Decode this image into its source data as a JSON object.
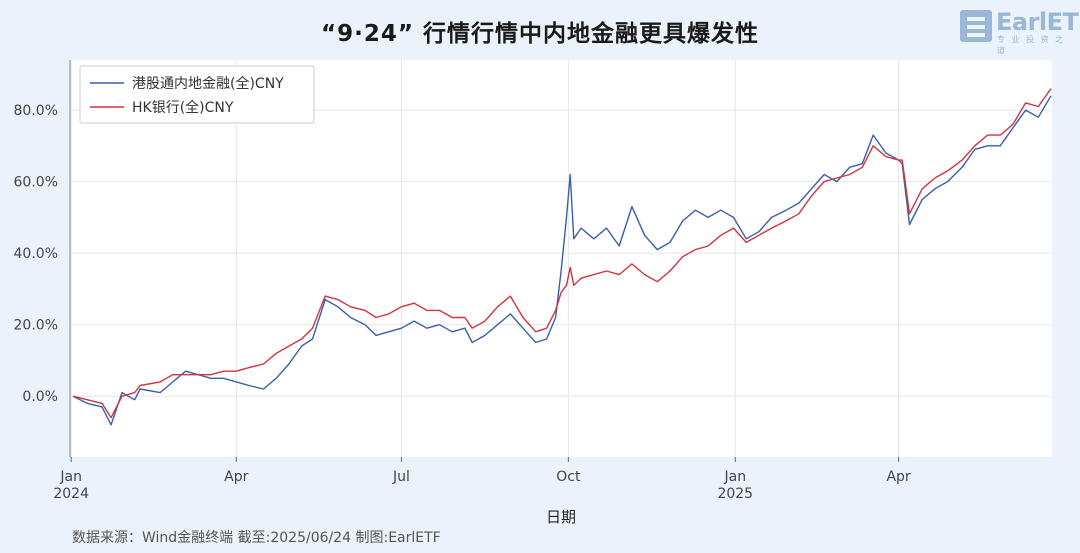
{
  "title": "“9·24” 行情行情中内地金融更具爆发性",
  "logo": {
    "name": "EarlETF",
    "sub": "专 业 投 资 之 道"
  },
  "source": "数据来源：Wind金融终端 截至:2025/06/24 制图:EarlETF",
  "colors": {
    "series1": "#3a5fa8",
    "series2": "#d0343f",
    "background": "#eaf2fb",
    "plot_bg": "#ffffff",
    "grid": "#e6e6e6"
  },
  "chart_data": {
    "type": "line",
    "title": "“9·24” 行情行情中内地金融更具爆发性",
    "xlabel": "日期",
    "ylabel": "",
    "x_range": [
      "2024-01-02",
      "2025-06-24"
    ],
    "ylim": [
      -0.17,
      0.94
    ],
    "y_ticks": [
      0,
      0.2,
      0.4,
      0.6,
      0.8
    ],
    "y_tick_labels": [
      "0.0%",
      "20.0%",
      "40.0%",
      "60.0%",
      "80.0%"
    ],
    "x_ticks": [
      {
        "date": "2024-01-01",
        "label": "Jan",
        "label2": "2024"
      },
      {
        "date": "2024-04-01",
        "label": "Apr",
        "label2": ""
      },
      {
        "date": "2024-07-01",
        "label": "Jul",
        "label2": ""
      },
      {
        "date": "2024-10-01",
        "label": "Oct",
        "label2": ""
      },
      {
        "date": "2025-01-01",
        "label": "Jan",
        "label2": "2025"
      },
      {
        "date": "2025-04-01",
        "label": "Apr",
        "label2": ""
      }
    ],
    "grid": true,
    "legend": "top-left",
    "series": [
      {
        "name": "港股通内地金融(全)CNY",
        "color": "#3a5fa8",
        "points": [
          [
            "2024-01-02",
            0.0
          ],
          [
            "2024-01-10",
            -0.02
          ],
          [
            "2024-01-18",
            -0.03
          ],
          [
            "2024-01-23",
            -0.08
          ],
          [
            "2024-01-29",
            0.01
          ],
          [
            "2024-02-05",
            -0.01
          ],
          [
            "2024-02-08",
            0.02
          ],
          [
            "2024-02-19",
            0.01
          ],
          [
            "2024-02-26",
            0.04
          ],
          [
            "2024-03-04",
            0.07
          ],
          [
            "2024-03-11",
            0.06
          ],
          [
            "2024-03-18",
            0.05
          ],
          [
            "2024-03-25",
            0.05
          ],
          [
            "2024-04-01",
            0.04
          ],
          [
            "2024-04-08",
            0.03
          ],
          [
            "2024-04-16",
            0.02
          ],
          [
            "2024-04-23",
            0.05
          ],
          [
            "2024-04-30",
            0.09
          ],
          [
            "2024-05-07",
            0.14
          ],
          [
            "2024-05-13",
            0.16
          ],
          [
            "2024-05-20",
            0.27
          ],
          [
            "2024-05-27",
            0.25
          ],
          [
            "2024-06-03",
            0.22
          ],
          [
            "2024-06-11",
            0.2
          ],
          [
            "2024-06-17",
            0.17
          ],
          [
            "2024-06-24",
            0.18
          ],
          [
            "2024-07-01",
            0.19
          ],
          [
            "2024-07-08",
            0.21
          ],
          [
            "2024-07-15",
            0.19
          ],
          [
            "2024-07-22",
            0.2
          ],
          [
            "2024-07-29",
            0.18
          ],
          [
            "2024-08-05",
            0.19
          ],
          [
            "2024-08-09",
            0.15
          ],
          [
            "2024-08-16",
            0.17
          ],
          [
            "2024-08-23",
            0.2
          ],
          [
            "2024-08-30",
            0.23
          ],
          [
            "2024-09-06",
            0.19
          ],
          [
            "2024-09-13",
            0.15
          ],
          [
            "2024-09-19",
            0.16
          ],
          [
            "2024-09-24",
            0.22
          ],
          [
            "2024-09-27",
            0.35
          ],
          [
            "2024-09-30",
            0.5
          ],
          [
            "2024-10-02",
            0.62
          ],
          [
            "2024-10-04",
            0.44
          ],
          [
            "2024-10-08",
            0.47
          ],
          [
            "2024-10-15",
            0.44
          ],
          [
            "2024-10-22",
            0.47
          ],
          [
            "2024-10-29",
            0.42
          ],
          [
            "2024-11-05",
            0.53
          ],
          [
            "2024-11-12",
            0.45
          ],
          [
            "2024-11-19",
            0.41
          ],
          [
            "2024-11-26",
            0.43
          ],
          [
            "2024-12-03",
            0.49
          ],
          [
            "2024-12-10",
            0.52
          ],
          [
            "2024-12-17",
            0.5
          ],
          [
            "2024-12-24",
            0.52
          ],
          [
            "2024-12-31",
            0.5
          ],
          [
            "2025-01-07",
            0.44
          ],
          [
            "2025-01-14",
            0.46
          ],
          [
            "2025-01-21",
            0.5
          ],
          [
            "2025-01-29",
            0.52
          ],
          [
            "2025-02-05",
            0.54
          ],
          [
            "2025-02-12",
            0.58
          ],
          [
            "2025-02-19",
            0.62
          ],
          [
            "2025-02-26",
            0.6
          ],
          [
            "2025-03-05",
            0.64
          ],
          [
            "2025-03-12",
            0.65
          ],
          [
            "2025-03-18",
            0.73
          ],
          [
            "2025-03-25",
            0.68
          ],
          [
            "2025-04-01",
            0.66
          ],
          [
            "2025-04-03",
            0.65
          ],
          [
            "2025-04-07",
            0.48
          ],
          [
            "2025-04-14",
            0.55
          ],
          [
            "2025-04-21",
            0.58
          ],
          [
            "2025-04-28",
            0.6
          ],
          [
            "2025-05-06",
            0.64
          ],
          [
            "2025-05-13",
            0.69
          ],
          [
            "2025-05-20",
            0.7
          ],
          [
            "2025-05-27",
            0.7
          ],
          [
            "2025-06-03",
            0.75
          ],
          [
            "2025-06-10",
            0.8
          ],
          [
            "2025-06-17",
            0.78
          ],
          [
            "2025-06-24",
            0.84
          ]
        ]
      },
      {
        "name": "HK银行(全)CNY",
        "color": "#d0343f",
        "points": [
          [
            "2024-01-02",
            0.0
          ],
          [
            "2024-01-10",
            -0.01
          ],
          [
            "2024-01-18",
            -0.02
          ],
          [
            "2024-01-23",
            -0.06
          ],
          [
            "2024-01-29",
            0.0
          ],
          [
            "2024-02-05",
            0.01
          ],
          [
            "2024-02-08",
            0.03
          ],
          [
            "2024-02-19",
            0.04
          ],
          [
            "2024-02-26",
            0.06
          ],
          [
            "2024-03-04",
            0.06
          ],
          [
            "2024-03-11",
            0.06
          ],
          [
            "2024-03-18",
            0.06
          ],
          [
            "2024-03-25",
            0.07
          ],
          [
            "2024-04-01",
            0.07
          ],
          [
            "2024-04-08",
            0.08
          ],
          [
            "2024-04-16",
            0.09
          ],
          [
            "2024-04-23",
            0.12
          ],
          [
            "2024-04-30",
            0.14
          ],
          [
            "2024-05-07",
            0.16
          ],
          [
            "2024-05-13",
            0.19
          ],
          [
            "2024-05-20",
            0.28
          ],
          [
            "2024-05-27",
            0.27
          ],
          [
            "2024-06-03",
            0.25
          ],
          [
            "2024-06-11",
            0.24
          ],
          [
            "2024-06-17",
            0.22
          ],
          [
            "2024-06-24",
            0.23
          ],
          [
            "2024-07-01",
            0.25
          ],
          [
            "2024-07-08",
            0.26
          ],
          [
            "2024-07-15",
            0.24
          ],
          [
            "2024-07-22",
            0.24
          ],
          [
            "2024-07-29",
            0.22
          ],
          [
            "2024-08-05",
            0.22
          ],
          [
            "2024-08-09",
            0.19
          ],
          [
            "2024-08-16",
            0.21
          ],
          [
            "2024-08-23",
            0.25
          ],
          [
            "2024-08-30",
            0.28
          ],
          [
            "2024-09-06",
            0.22
          ],
          [
            "2024-09-13",
            0.18
          ],
          [
            "2024-09-19",
            0.19
          ],
          [
            "2024-09-24",
            0.24
          ],
          [
            "2024-09-27",
            0.29
          ],
          [
            "2024-09-30",
            0.31
          ],
          [
            "2024-10-02",
            0.36
          ],
          [
            "2024-10-04",
            0.31
          ],
          [
            "2024-10-08",
            0.33
          ],
          [
            "2024-10-15",
            0.34
          ],
          [
            "2024-10-22",
            0.35
          ],
          [
            "2024-10-29",
            0.34
          ],
          [
            "2024-11-05",
            0.37
          ],
          [
            "2024-11-12",
            0.34
          ],
          [
            "2024-11-19",
            0.32
          ],
          [
            "2024-11-26",
            0.35
          ],
          [
            "2024-12-03",
            0.39
          ],
          [
            "2024-12-10",
            0.41
          ],
          [
            "2024-12-17",
            0.42
          ],
          [
            "2024-12-24",
            0.45
          ],
          [
            "2024-12-31",
            0.47
          ],
          [
            "2025-01-07",
            0.43
          ],
          [
            "2025-01-14",
            0.45
          ],
          [
            "2025-01-21",
            0.47
          ],
          [
            "2025-01-29",
            0.49
          ],
          [
            "2025-02-05",
            0.51
          ],
          [
            "2025-02-12",
            0.56
          ],
          [
            "2025-02-19",
            0.6
          ],
          [
            "2025-02-26",
            0.61
          ],
          [
            "2025-03-05",
            0.62
          ],
          [
            "2025-03-12",
            0.64
          ],
          [
            "2025-03-18",
            0.7
          ],
          [
            "2025-03-25",
            0.67
          ],
          [
            "2025-04-01",
            0.66
          ],
          [
            "2025-04-03",
            0.66
          ],
          [
            "2025-04-07",
            0.51
          ],
          [
            "2025-04-14",
            0.58
          ],
          [
            "2025-04-21",
            0.61
          ],
          [
            "2025-04-28",
            0.63
          ],
          [
            "2025-05-06",
            0.66
          ],
          [
            "2025-05-13",
            0.7
          ],
          [
            "2025-05-20",
            0.73
          ],
          [
            "2025-05-27",
            0.73
          ],
          [
            "2025-06-03",
            0.76
          ],
          [
            "2025-06-10",
            0.82
          ],
          [
            "2025-06-17",
            0.81
          ],
          [
            "2025-06-24",
            0.86
          ]
        ]
      }
    ]
  }
}
